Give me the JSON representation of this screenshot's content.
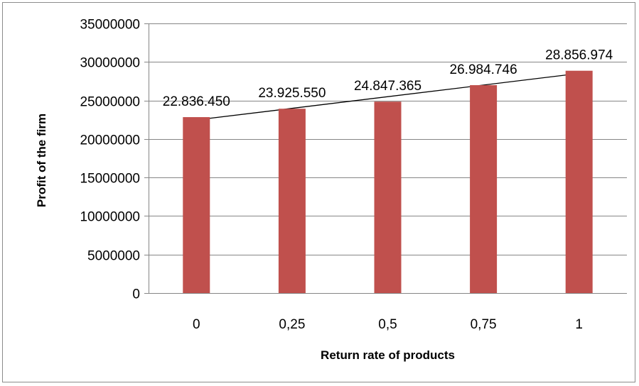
{
  "chart_data": {
    "type": "bar",
    "categories": [
      "0",
      "0,25",
      "0,5",
      "0,75",
      "1"
    ],
    "values": [
      22836450,
      23925550,
      24847365,
      26984746,
      28856974
    ],
    "data_labels": [
      "22.836.450",
      "23.925.550",
      "24.847.365",
      "26.984.746",
      "28.856.974"
    ],
    "xlabel": "Return rate of products",
    "ylabel": "Profit of the firm",
    "ylim": [
      0,
      35000000
    ],
    "yticks": [
      0,
      5000000,
      10000000,
      15000000,
      20000000,
      25000000,
      30000000,
      35000000
    ],
    "ytick_labels": [
      "0",
      "5000000",
      "10000000",
      "15000000",
      "20000000",
      "25000000",
      "30000000",
      "35000000"
    ],
    "grid": true,
    "legend": "none",
    "trendline": "linear",
    "colors": {
      "bar": "#c0504d",
      "gridline": "#868686",
      "trendline": "#000000",
      "border": "#8c8c8c"
    }
  }
}
